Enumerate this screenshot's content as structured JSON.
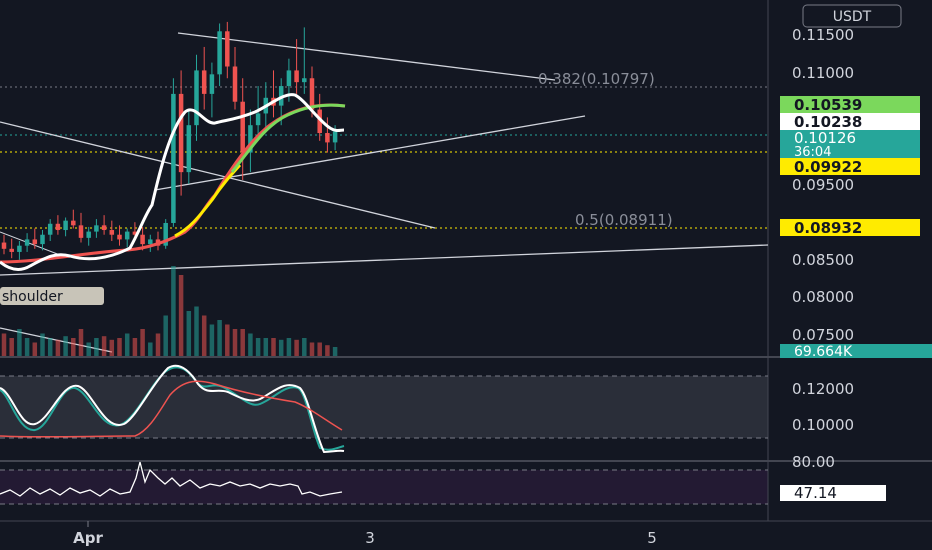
{
  "header": {
    "currency_label": "USDT"
  },
  "chart_data": {
    "type": "candlestick",
    "x_ticks": [
      "Apr",
      "3",
      "5"
    ],
    "price_axis": {
      "ticks": [
        "0.11500",
        "0.11000",
        "0.09500",
        "0.08500",
        "0.08000",
        "0.07500"
      ],
      "range": [
        0.0725,
        0.118
      ]
    },
    "price_tags": [
      {
        "label": "0.10539",
        "value": 0.10539,
        "bg": "#7bd85c",
        "fg": "#131722"
      },
      {
        "label": "0.10238",
        "value": 0.10238,
        "bg": "#ffffff",
        "fg": "#131722"
      },
      {
        "label": "0.10126",
        "value": 0.10126,
        "bg": "#26a69a",
        "fg": "#ffffff",
        "countdown": "36:04"
      },
      {
        "label": "0.09922",
        "value": 0.09922,
        "bg": "#ffeb00",
        "fg": "#131722"
      },
      {
        "label": "0.08932",
        "value": 0.08932,
        "bg": "#ffeb00",
        "fg": "#131722"
      }
    ],
    "volume_tag": {
      "label": "69.664K",
      "bg": "#26a69a",
      "fg": "#ffffff"
    },
    "fib_levels": [
      {
        "label": "0.382(0.10797)",
        "value": 0.10797
      },
      {
        "label": "0.5(0.08911)",
        "value": 0.08911
      }
    ],
    "annotation": "shoulder",
    "candles": [
      [
        0.087,
        0.088,
        0.0855,
        0.0862
      ],
      [
        0.0862,
        0.0875,
        0.085,
        0.0858
      ],
      [
        0.0858,
        0.0872,
        0.0848,
        0.0866
      ],
      [
        0.0866,
        0.0882,
        0.0858,
        0.0874
      ],
      [
        0.0874,
        0.0888,
        0.0862,
        0.0868
      ],
      [
        0.0868,
        0.0886,
        0.086,
        0.088
      ],
      [
        0.088,
        0.09,
        0.0872,
        0.0894
      ],
      [
        0.0894,
        0.0905,
        0.088,
        0.0886
      ],
      [
        0.0886,
        0.0902,
        0.0878,
        0.0898
      ],
      [
        0.0898,
        0.0912,
        0.0888,
        0.0892
      ],
      [
        0.0892,
        0.0908,
        0.087,
        0.0876
      ],
      [
        0.0876,
        0.089,
        0.0866,
        0.0884
      ],
      [
        0.0884,
        0.09,
        0.0876,
        0.0892
      ],
      [
        0.0892,
        0.0905,
        0.088,
        0.0886
      ],
      [
        0.0886,
        0.0898,
        0.0872,
        0.088
      ],
      [
        0.088,
        0.0892,
        0.0866,
        0.0874
      ],
      [
        0.0874,
        0.0888,
        0.0864,
        0.0884
      ],
      [
        0.0884,
        0.0896,
        0.0876,
        0.088
      ],
      [
        0.088,
        0.089,
        0.086,
        0.0868
      ],
      [
        0.0868,
        0.088,
        0.0858,
        0.0874
      ],
      [
        0.0874,
        0.0884,
        0.086,
        0.0866
      ],
      [
        0.0866,
        0.09,
        0.0862,
        0.0895
      ],
      [
        0.0895,
        0.108,
        0.089,
        0.106
      ],
      [
        0.106,
        0.109,
        0.093,
        0.096
      ],
      [
        0.096,
        0.104,
        0.0945,
        0.102
      ],
      [
        0.102,
        0.111,
        0.1,
        0.109
      ],
      [
        0.109,
        0.112,
        0.104,
        0.106
      ],
      [
        0.106,
        0.11,
        0.103,
        0.1085
      ],
      [
        0.1085,
        0.115,
        0.107,
        0.114
      ],
      [
        0.114,
        0.1152,
        0.108,
        0.1095
      ],
      [
        0.1095,
        0.112,
        0.104,
        0.105
      ],
      [
        0.105,
        0.108,
        0.095,
        0.0985
      ],
      [
        0.0985,
        0.104,
        0.096,
        0.102
      ],
      [
        0.102,
        0.107,
        0.1,
        0.1035
      ],
      [
        0.1035,
        0.1075,
        0.1015,
        0.1055
      ],
      [
        0.1055,
        0.109,
        0.103,
        0.1045
      ],
      [
        0.1045,
        0.108,
        0.102,
        0.107
      ],
      [
        0.107,
        0.1105,
        0.105,
        0.109
      ],
      [
        0.109,
        0.113,
        0.106,
        0.1075
      ],
      [
        0.1075,
        0.1145,
        0.106,
        0.108
      ],
      [
        0.108,
        0.1095,
        0.103,
        0.104
      ],
      [
        0.104,
        0.106,
        0.1,
        0.101
      ],
      [
        0.101,
        0.103,
        0.0985,
        0.0998
      ],
      [
        0.0998,
        0.102,
        0.0988,
        0.1012
      ]
    ],
    "volume": [
      0.25,
      0.2,
      0.3,
      0.2,
      0.15,
      0.25,
      0.2,
      0.18,
      0.22,
      0.2,
      0.3,
      0.15,
      0.2,
      0.22,
      0.18,
      0.2,
      0.25,
      0.2,
      0.3,
      0.15,
      0.25,
      0.45,
      1.0,
      0.9,
      0.5,
      0.55,
      0.45,
      0.35,
      0.4,
      0.35,
      0.3,
      0.3,
      0.25,
      0.2,
      0.2,
      0.2,
      0.18,
      0.2,
      0.18,
      0.2,
      0.15,
      0.15,
      0.12,
      0.1
    ],
    "indicator_1_axis": [
      "0.12000",
      "0.10000"
    ],
    "indicator_2": {
      "axis": [
        "80.00"
      ],
      "value_tag": "47.14"
    }
  }
}
